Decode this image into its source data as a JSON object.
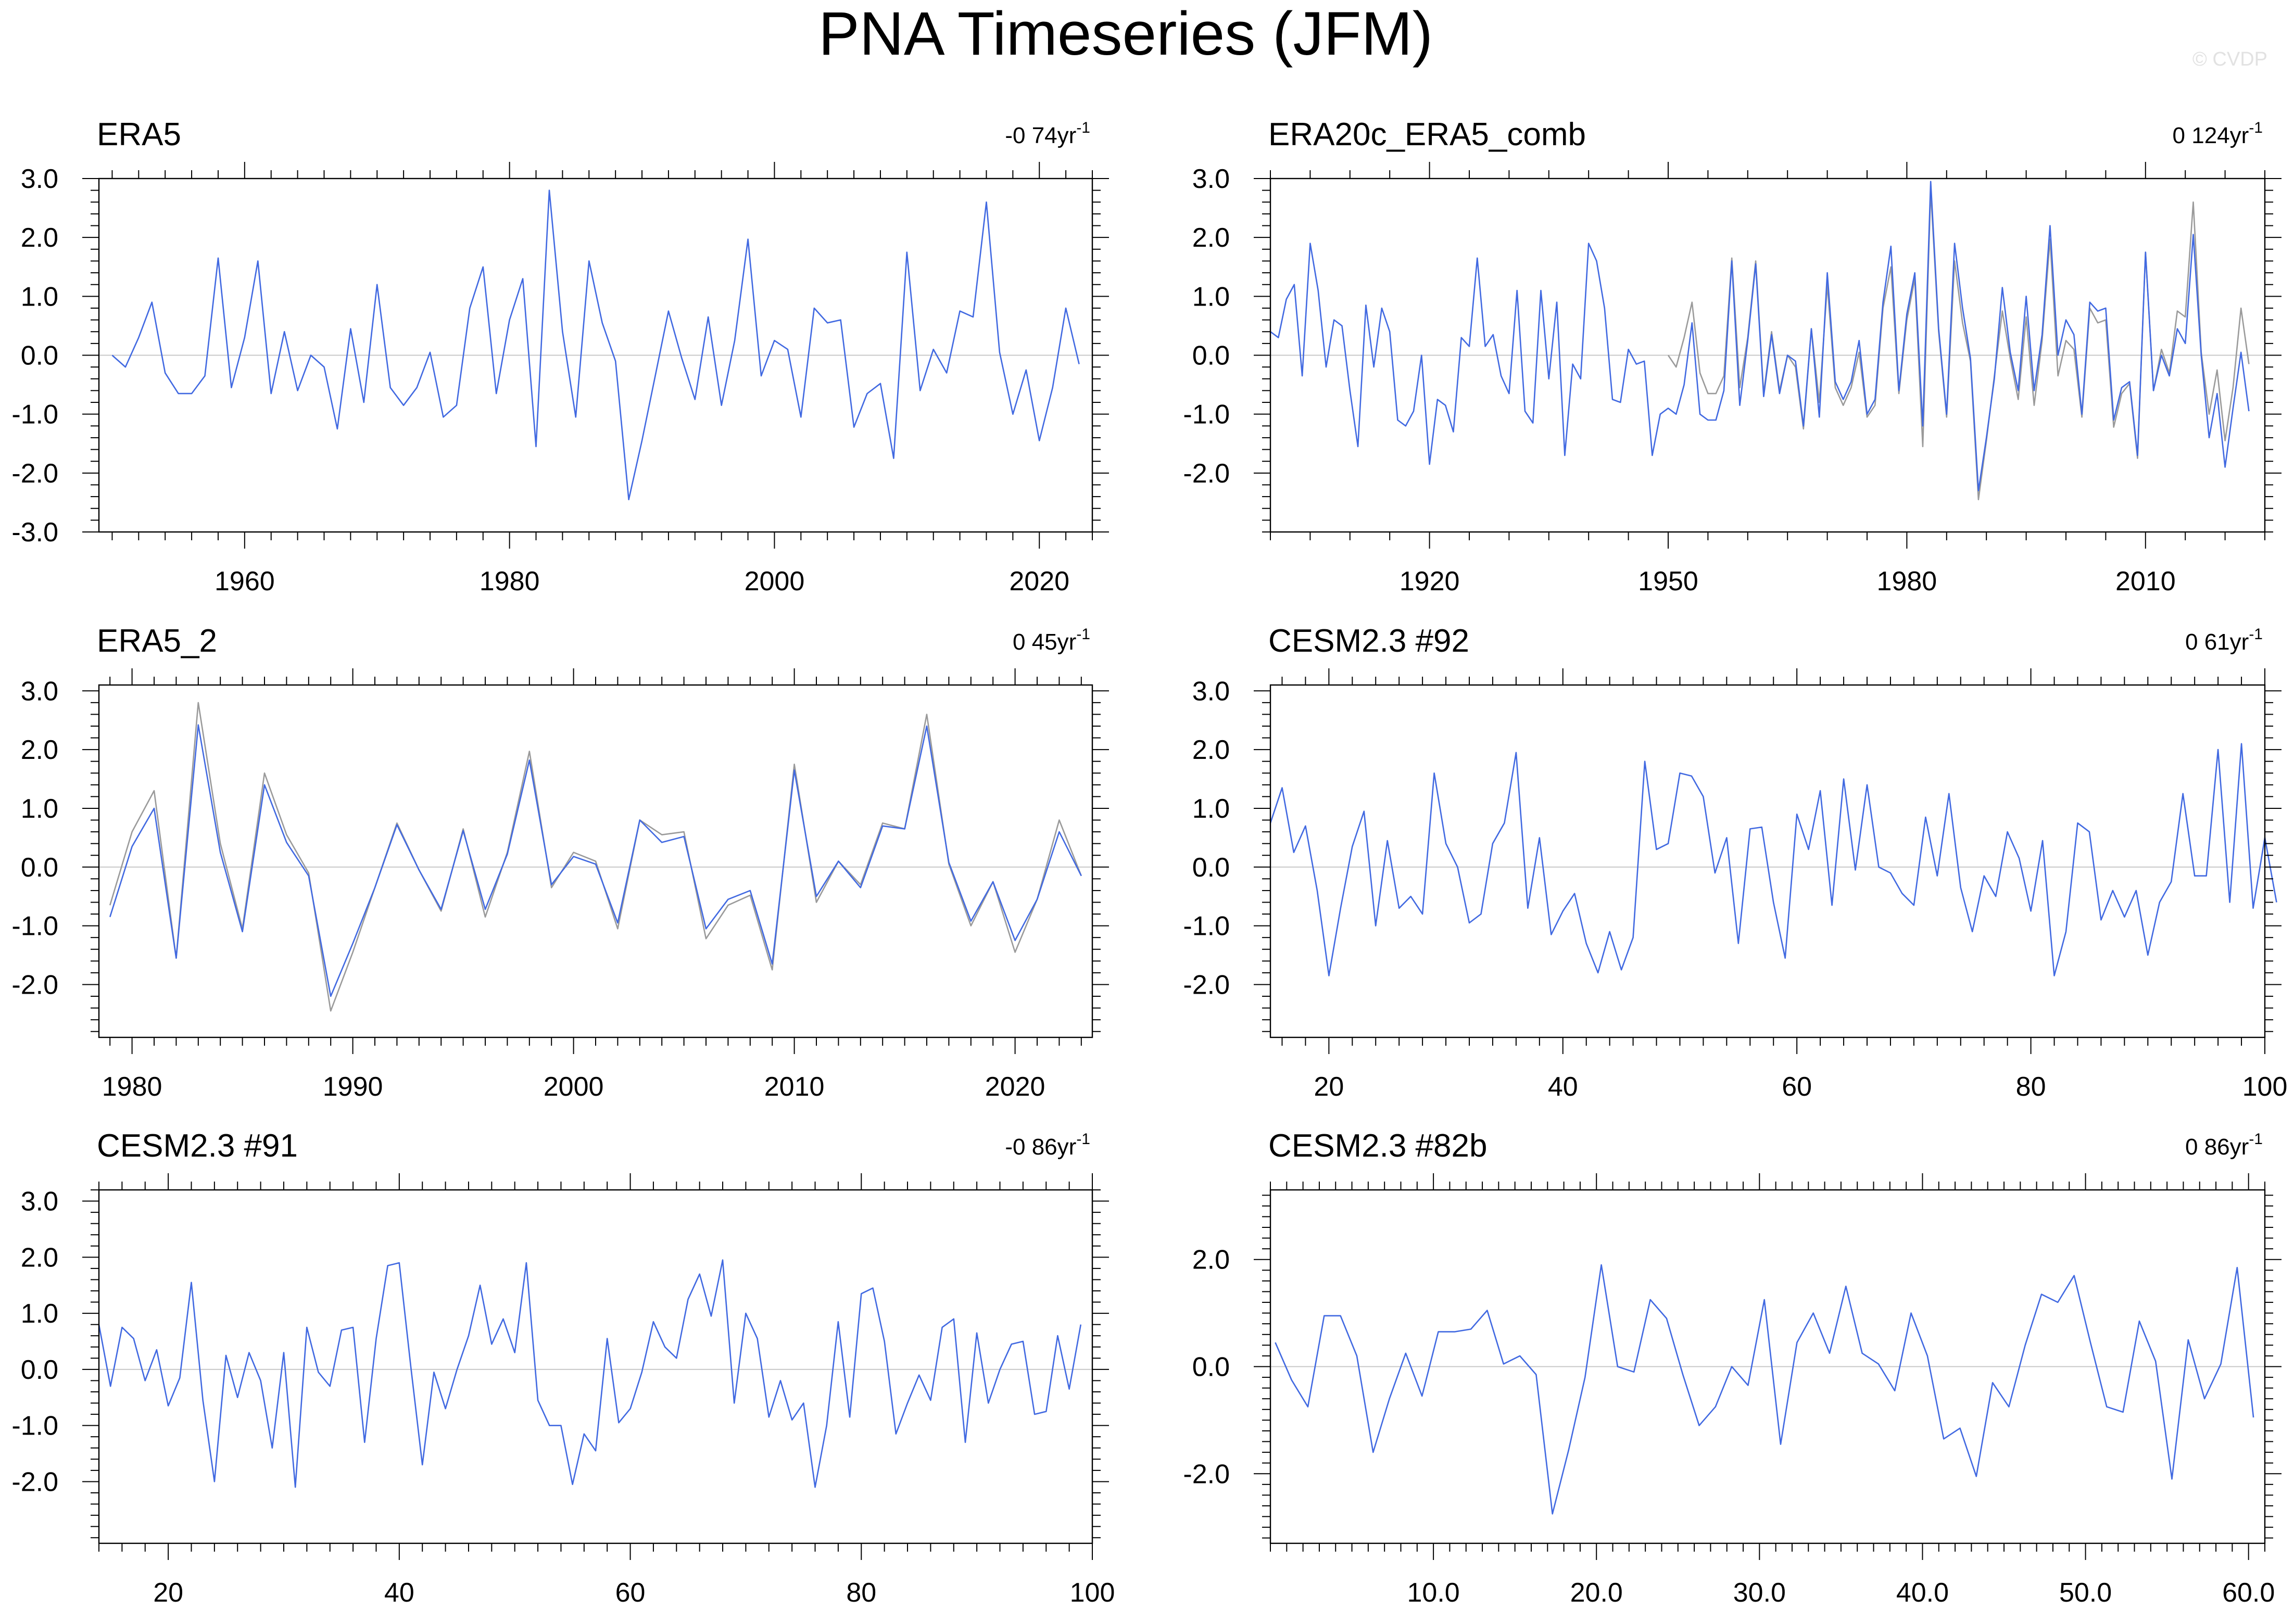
{
  "title": "PNA Timeseries (JFM)",
  "watermark": "© CVDP",
  "colors": {
    "series": "#4169e1",
    "reference": "#9a9a9a",
    "axis": "#000000",
    "zero": "#c8c8c8"
  },
  "chart_data": [
    {
      "type": "line",
      "title": "ERA5",
      "trend_label": "-0 74yr",
      "trend_unit_exp": "-1",
      "xlim": [
        1949,
        2024
      ],
      "ylim": [
        -3,
        3
      ],
      "yticks": [
        -3,
        -2,
        -1,
        0,
        1,
        2,
        3
      ],
      "ytick_labels": [
        "-3.0",
        "-2.0",
        "-1.0",
        "0.0",
        "1.0",
        "2.0",
        "3.0"
      ],
      "xticks": [
        1960,
        1980,
        2000,
        2020
      ],
      "xtick_labels": [
        "1960",
        "1980",
        "2000",
        "2020"
      ],
      "xminor": 2,
      "series": [
        {
          "name": "ERA5",
          "color": "#4169e1",
          "x0": 1950,
          "values": [
            0.0,
            -0.2,
            0.3,
            0.9,
            -0.3,
            -0.65,
            -0.65,
            -0.35,
            1.65,
            -0.55,
            0.3,
            1.6,
            -0.65,
            0.4,
            -0.6,
            0.0,
            -0.2,
            -1.25,
            0.45,
            -0.8,
            1.2,
            -0.55,
            -0.85,
            -0.55,
            0.05,
            -1.05,
            -0.85,
            0.8,
            1.5,
            -0.65,
            0.6,
            1.3,
            -1.55,
            2.8,
            0.4,
            -1.05,
            1.6,
            0.55,
            -0.1,
            -2.45,
            -1.45,
            -0.35,
            0.75,
            -0.05,
            -0.75,
            0.65,
            -0.85,
            0.25,
            1.97,
            -0.35,
            0.25,
            0.1,
            -1.05,
            0.8,
            0.55,
            0.6,
            -1.22,
            -0.65,
            -0.48,
            -1.75,
            1.75,
            -0.6,
            0.1,
            -0.3,
            0.75,
            0.65,
            2.6,
            0.05,
            -1.0,
            -0.25,
            -1.45,
            -0.55,
            0.8,
            -0.15
          ]
        }
      ]
    },
    {
      "type": "line",
      "title": "ERA20c_ERA5_comb",
      "trend_label": "0 124yr",
      "trend_unit_exp": "-1",
      "xlim": [
        1900,
        2025
      ],
      "ylim": [
        -3,
        3
      ],
      "yticks": [
        -2,
        -1,
        0,
        1,
        2,
        3
      ],
      "ytick_labels": [
        "-2.0",
        "-1.0",
        "0.0",
        "1.0",
        "2.0",
        "3.0"
      ],
      "xticks": [
        1920,
        1950,
        1980,
        2010
      ],
      "xtick_labels": [
        "1920",
        "1950",
        "1980",
        "2010"
      ],
      "xminor": 5,
      "series": [
        {
          "name": "ERA5",
          "color": "#9a9a9a",
          "x0": 1950,
          "values": [
            0.0,
            -0.2,
            0.3,
            0.9,
            -0.3,
            -0.65,
            -0.65,
            -0.35,
            1.65,
            -0.55,
            0.3,
            1.6,
            -0.65,
            0.4,
            -0.6,
            0.0,
            -0.2,
            -1.25,
            0.45,
            -0.8,
            1.2,
            -0.55,
            -0.85,
            -0.55,
            0.05,
            -1.05,
            -0.85,
            0.8,
            1.5,
            -0.65,
            0.6,
            1.3,
            -1.55,
            2.8,
            0.4,
            -1.05,
            1.6,
            0.55,
            -0.1,
            -2.45,
            -1.45,
            -0.35,
            0.75,
            -0.05,
            -0.75,
            0.65,
            -0.85,
            0.25,
            1.97,
            -0.35,
            0.25,
            0.1,
            -1.05,
            0.8,
            0.55,
            0.6,
            -1.22,
            -0.65,
            -0.48,
            -1.75,
            1.75,
            -0.6,
            0.1,
            -0.3,
            0.75,
            0.65,
            2.6,
            0.05,
            -1.0,
            -0.25,
            -1.45,
            -0.55,
            0.8,
            -0.15
          ]
        },
        {
          "name": "ERA20c_ERA5_comb",
          "color": "#4169e1",
          "x0": 1900,
          "values": [
            0.4,
            0.3,
            0.95,
            1.2,
            -0.35,
            1.9,
            1.1,
            -0.2,
            0.6,
            0.5,
            -0.6,
            -1.55,
            0.85,
            -0.2,
            0.8,
            0.4,
            -1.1,
            -1.2,
            -0.95,
            0.0,
            -1.85,
            -0.75,
            -0.85,
            -1.3,
            0.3,
            0.15,
            1.65,
            0.15,
            0.35,
            -0.35,
            -0.65,
            1.1,
            -0.95,
            -1.15,
            1.1,
            -0.4,
            0.9,
            -1.7,
            -0.15,
            -0.4,
            1.9,
            1.6,
            0.8,
            -0.75,
            -0.8,
            0.1,
            -0.15,
            -0.1,
            -1.7,
            -1.0,
            -0.9,
            -1.0,
            -0.5,
            0.55,
            -1.0,
            -1.1,
            -1.1,
            -0.6,
            1.6,
            -0.85,
            0.25,
            1.55,
            -0.7,
            0.35,
            -0.65,
            0.0,
            -0.1,
            -1.2,
            0.45,
            -1.05,
            1.4,
            -0.45,
            -0.75,
            -0.45,
            0.25,
            -1.0,
            -0.75,
            0.9,
            1.85,
            -0.6,
            0.7,
            1.4,
            -1.2,
            2.95,
            0.45,
            -1.0,
            1.9,
            0.8,
            -0.05,
            -2.3,
            -1.4,
            -0.4,
            1.15,
            0.05,
            -0.6,
            1.0,
            -0.6,
            0.35,
            2.2,
            0.0,
            0.6,
            0.35,
            -1.0,
            0.9,
            0.75,
            0.8,
            -1.1,
            -0.55,
            -0.45,
            -1.7,
            1.75,
            -0.6,
            0.0,
            -0.35,
            0.45,
            0.2,
            2.05,
            0.0,
            -1.4,
            -0.65,
            -1.9,
            -0.9,
            0.05,
            -0.95
          ]
        }
      ]
    },
    {
      "type": "line",
      "title": "ERA5_2",
      "trend_label": "0 45yr",
      "trend_unit_exp": "-1",
      "xlim": [
        1978.5,
        2023.5
      ],
      "ylim": [
        -2.9,
        3.1
      ],
      "yticks": [
        -2,
        -1,
        0,
        1,
        2,
        3
      ],
      "ytick_labels": [
        "-2.0",
        "-1.0",
        "0.0",
        "1.0",
        "2.0",
        "3.0"
      ],
      "xticks": [
        1980,
        1990,
        2000,
        2010,
        2020
      ],
      "xtick_labels": [
        "1980",
        "1990",
        "2000",
        "2010",
        "2020"
      ],
      "xminor": 1,
      "series": [
        {
          "name": "ERA5",
          "color": "#9a9a9a",
          "x0": 1979,
          "values": [
            -0.65,
            0.6,
            1.3,
            -1.55,
            2.8,
            0.4,
            -1.05,
            1.6,
            0.55,
            -0.1,
            -2.45,
            -1.45,
            -0.35,
            0.75,
            -0.05,
            -0.75,
            0.65,
            -0.85,
            0.25,
            1.97,
            -0.35,
            0.25,
            0.1,
            -1.05,
            0.8,
            0.55,
            0.6,
            -1.22,
            -0.65,
            -0.48,
            -1.75,
            1.75,
            -0.6,
            0.1,
            -0.3,
            0.75,
            0.65,
            2.6,
            0.05,
            -1.0,
            -0.25,
            -1.45,
            -0.55,
            0.8,
            -0.15
          ]
        },
        {
          "name": "ERA5_2",
          "color": "#4169e1",
          "x0": 1979,
          "values": [
            -0.85,
            0.35,
            1.0,
            -1.55,
            2.42,
            0.25,
            -1.1,
            1.4,
            0.42,
            -0.15,
            -2.2,
            -1.3,
            -0.35,
            0.72,
            -0.05,
            -0.72,
            0.62,
            -0.72,
            0.22,
            1.82,
            -0.3,
            0.18,
            0.05,
            -0.95,
            0.8,
            0.42,
            0.52,
            -1.05,
            -0.55,
            -0.4,
            -1.65,
            1.65,
            -0.5,
            0.1,
            -0.35,
            0.7,
            0.65,
            2.4,
            0.08,
            -0.92,
            -0.25,
            -1.25,
            -0.55,
            0.6,
            -0.15
          ]
        }
      ]
    },
    {
      "type": "line",
      "title": "CESM2.3 #92",
      "trend_label": "0 61yr",
      "trend_unit_exp": "-1",
      "xlim": [
        15,
        100
      ],
      "ylim": [
        -2.9,
        3.1
      ],
      "yticks": [
        -2,
        -1,
        0,
        1,
        2,
        3
      ],
      "ytick_labels": [
        "-2.0",
        "-1.0",
        "0.0",
        "1.0",
        "2.0",
        "3.0"
      ],
      "xticks": [
        20,
        40,
        60,
        80,
        100
      ],
      "xtick_labels": [
        "20",
        "40",
        "60",
        "80",
        "100"
      ],
      "xminor": 2,
      "series": [
        {
          "name": "CESM2.3 #92",
          "color": "#4169e1",
          "x0": 15,
          "values": [
            0.75,
            1.35,
            0.25,
            0.7,
            -0.4,
            -1.85,
            -0.7,
            0.35,
            0.95,
            -1.0,
            0.45,
            -0.7,
            -0.5,
            -0.8,
            1.6,
            0.4,
            0.0,
            -0.95,
            -0.8,
            0.4,
            0.75,
            1.95,
            -0.7,
            0.5,
            -1.15,
            -0.75,
            -0.45,
            -1.3,
            -1.8,
            -1.1,
            -1.75,
            -1.2,
            1.8,
            0.3,
            0.4,
            1.6,
            1.55,
            1.2,
            -0.1,
            0.5,
            -1.3,
            0.65,
            0.68,
            -0.6,
            -1.55,
            0.9,
            0.3,
            1.3,
            -0.65,
            1.5,
            -0.05,
            1.4,
            0.0,
            -0.1,
            -0.45,
            -0.65,
            0.85,
            -0.15,
            1.25,
            -0.35,
            -1.1,
            -0.15,
            -0.5,
            0.6,
            0.15,
            -0.75,
            0.45,
            -1.85,
            -1.1,
            0.75,
            0.6,
            -0.9,
            -0.4,
            -0.85,
            -0.4,
            -1.5,
            -0.6,
            -0.25,
            1.25,
            -0.15,
            -0.15,
            2.0,
            -0.6,
            2.1,
            -0.7,
            0.5,
            -0.6
          ]
        }
      ]
    },
    {
      "type": "line",
      "title": "CESM2.3 #91",
      "trend_label": "-0 86yr",
      "trend_unit_exp": "-1",
      "xlim": [
        14,
        100
      ],
      "ylim": [
        -3.1,
        3.2
      ],
      "yticks": [
        -2,
        -1,
        0,
        1,
        2,
        3
      ],
      "ytick_labels": [
        "-2.0",
        "-1.0",
        "0.0",
        "1.0",
        "2.0",
        "3.0"
      ],
      "xticks": [
        20,
        40,
        60,
        80,
        100
      ],
      "xtick_labels": [
        "20",
        "40",
        "60",
        "80",
        "100"
      ],
      "xminor": 2,
      "series": [
        {
          "name": "CESM2.3 #91",
          "color": "#4169e1",
          "x0": 14,
          "values": [
            0.8,
            -0.3,
            0.75,
            0.55,
            -0.2,
            0.35,
            -0.65,
            -0.15,
            1.55,
            -0.55,
            -2.0,
            0.25,
            -0.5,
            0.3,
            -0.2,
            -1.4,
            0.3,
            -2.1,
            0.75,
            -0.05,
            -0.3,
            0.7,
            0.75,
            -1.3,
            0.55,
            1.85,
            1.9,
            0.05,
            -1.7,
            -0.05,
            -0.7,
            0.0,
            0.6,
            1.5,
            0.45,
            0.9,
            0.3,
            1.9,
            -0.55,
            -1.0,
            -1.0,
            -2.05,
            -1.15,
            -1.45,
            0.55,
            -0.95,
            -0.7,
            -0.05,
            0.85,
            0.4,
            0.2,
            1.25,
            1.7,
            0.95,
            1.95,
            -0.6,
            1.0,
            0.55,
            -0.85,
            -0.2,
            -0.9,
            -0.6,
            -2.1,
            -1.0,
            0.85,
            -0.85,
            1.35,
            1.45,
            0.5,
            -1.15,
            -0.6,
            -0.1,
            -0.55,
            0.75,
            0.9,
            -1.3,
            0.65,
            -0.6,
            0.0,
            0.45,
            0.5,
            -0.8,
            -0.75,
            0.6,
            -0.35,
            0.8
          ]
        }
      ]
    },
    {
      "type": "line",
      "title": "CESM2.3 #82b",
      "trend_label": "0 86yr",
      "trend_unit_exp": "-1",
      "xlim": [
        0,
        61
      ],
      "ylim": [
        -3.3,
        3.3
      ],
      "yticks": [
        -2,
        0,
        2
      ],
      "ytick_labels": [
        "-2.0",
        "0.0",
        "2.0"
      ],
      "xticks": [
        10,
        20,
        30,
        40,
        50,
        60
      ],
      "xtick_labels": [
        "10.0",
        "20.0",
        "30.0",
        "40.0",
        "50.0",
        "60.0"
      ],
      "xminor": 1,
      "series": [
        {
          "name": "CESM2.3 #82b",
          "color": "#4169e1",
          "x0": 0.3,
          "values": [
            0.45,
            -0.25,
            -0.75,
            0.95,
            0.95,
            0.2,
            -1.6,
            -0.6,
            0.25,
            -0.55,
            0.65,
            0.65,
            0.7,
            1.05,
            0.05,
            0.2,
            -0.15,
            -2.75,
            -1.55,
            -0.2,
            1.9,
            0.0,
            -0.1,
            1.25,
            0.9,
            -0.15,
            -1.1,
            -0.75,
            0.0,
            -0.35,
            1.25,
            -1.45,
            0.45,
            1.0,
            0.25,
            1.5,
            0.25,
            0.05,
            -0.45,
            1.0,
            0.2,
            -1.35,
            -1.15,
            -2.05,
            -0.3,
            -0.75,
            0.4,
            1.35,
            1.2,
            1.7,
            0.45,
            -0.75,
            -0.85,
            0.85,
            0.1,
            -2.1,
            0.5,
            -0.6,
            0.05,
            1.85,
            -0.95
          ]
        }
      ]
    }
  ]
}
